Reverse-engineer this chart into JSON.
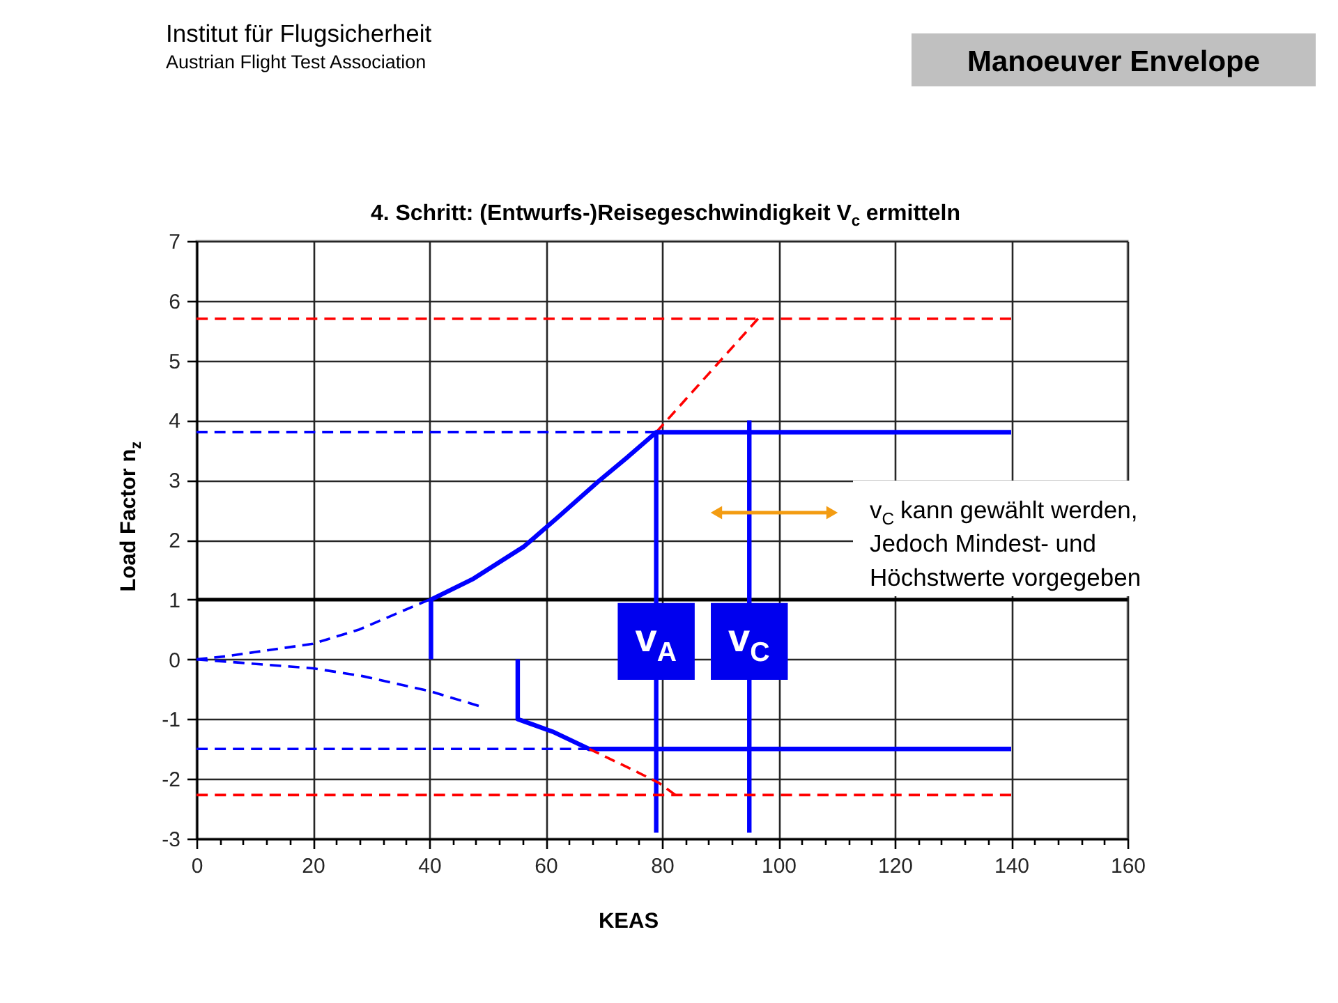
{
  "chart_data": {
    "type": "line",
    "title": "4. Schritt: (Entwurfs-)Reisegeschwindigkeit V$_{c}$ ermitteln",
    "xlabel": "KEAS",
    "ylabel": "Load Factor n$_{z}$",
    "xlim": [
      0,
      160
    ],
    "ylim": [
      -3,
      7
    ],
    "xticks": [
      0,
      {
        "value": 4,
        "label": null
      },
      {
        "value": 8,
        "label": null
      },
      {
        "value": 12,
        "label": null
      },
      {
        "value": 16,
        "label": null
      },
      20,
      {
        "value": 24,
        "label": null
      },
      {
        "value": 28,
        "label": null
      },
      {
        "value": 32,
        "label": null
      },
      {
        "value": 36,
        "label": null
      },
      40,
      {
        "value": 44,
        "label": null
      },
      {
        "value": 48,
        "label": null
      },
      {
        "value": 52,
        "label": null
      },
      {
        "value": 56,
        "label": null
      },
      60,
      {
        "value": 64,
        "label": null
      },
      {
        "value": 68,
        "label": null
      },
      {
        "value": 72,
        "label": null
      },
      {
        "value": 76,
        "label": null
      },
      80,
      {
        "value": 84,
        "label": null
      },
      {
        "value": 88,
        "label": null
      },
      {
        "value": 92,
        "label": null
      },
      {
        "value": 96,
        "label": null
      },
      100,
      {
        "value": 104,
        "label": null
      },
      {
        "value": 108,
        "label": null
      },
      {
        "value": 112,
        "label": null
      },
      {
        "value": 116,
        "label": null
      },
      120,
      {
        "value": 124,
        "label": null
      },
      {
        "value": 128,
        "label": null
      },
      {
        "value": 132,
        "label": null
      },
      {
        "value": 136,
        "label": null
      },
      140,
      {
        "value": 144,
        "label": null
      },
      {
        "value": 148,
        "label": null
      },
      {
        "value": 152,
        "label": null
      },
      {
        "value": 156,
        "label": null
      },
      160
    ],
    "yticks": [
      -3,
      -2,
      -1,
      0,
      1,
      2,
      3,
      4,
      5,
      6,
      7
    ],
    "grid": true,
    "ref_lines": [
      {
        "axis": "y",
        "value": 1,
        "color": "#000000"
      }
    ],
    "series": [
      {
        "color": "#ff0000",
        "line_style": "dashed",
        "x": [
          0,
          140
        ],
        "values": [
          5.7,
          5.7
        ]
      },
      {
        "color": "#ff0000",
        "line_style": "dashed",
        "x": [
          79,
          96.5
        ],
        "values": [
          3.8,
          5.7
        ]
      },
      {
        "color": "#0000ff",
        "line_style": "dashed",
        "x": [
          0,
          79
        ],
        "values": [
          3.8,
          3.8
        ]
      },
      {
        "color": "#0000ff",
        "line_style": "dashed",
        "x": [
          0,
          5,
          10,
          20,
          28,
          40
        ],
        "values": [
          0,
          0.05,
          0.12,
          0.26,
          0.5,
          1
        ]
      },
      {
        "color": "#0000ff",
        "line_style": "solid",
        "x": [
          40.3,
          40.3,
          47.6,
          56.3,
          61.9,
          69.1,
          73.9,
          79,
          140
        ],
        "values": [
          0,
          1,
          1.35,
          1.89,
          2.36,
          2.98,
          3.37,
          3.8,
          3.8
        ]
      },
      {
        "color": "#0000ff",
        "line_style": "solid",
        "x": [
          79,
          79
        ],
        "values": [
          3.8,
          -2.9
        ]
      },
      {
        "color": "#0000ff",
        "line_style": "solid",
        "x": [
          95,
          95
        ],
        "values": [
          4,
          -2.9
        ]
      },
      {
        "color": "#0000ff",
        "line_style": "dashed",
        "x": [
          0,
          20,
          28.5,
          40,
          48.5
        ],
        "values": [
          0,
          -0.15,
          -0.28,
          -0.53,
          -0.78
        ]
      },
      {
        "color": "#0000ff",
        "line_style": "solid",
        "x": [
          55.2,
          55.2,
          61.2,
          67.5,
          140
        ],
        "values": [
          0,
          -1,
          -1.21,
          -1.5,
          -1.5
        ]
      },
      {
        "color": "#0000ff",
        "line_style": "dashed",
        "x": [
          0,
          67.5
        ],
        "values": [
          -1.5,
          -1.5
        ]
      },
      {
        "color": "#ff0000",
        "line_style": "dashed",
        "x": [
          67.5,
          75,
          79.5,
          82.3
        ],
        "values": [
          -1.5,
          -1.85,
          -2.07,
          -2.27
        ]
      },
      {
        "color": "#ff0000",
        "line_style": "dashed",
        "x": [
          0,
          140
        ],
        "values": [
          -2.27,
          -2.27
        ]
      }
    ],
    "annotations": [
      "Institut für Flugsicherheit",
      "Austrian Flight Test Association",
      "Manoeuver Envelope",
      {
        "text": "v$_{A}$",
        "x": 79,
        "y": 0.3
      },
      {
        "text": "v$_{C}$",
        "x": 95,
        "y": 0.3
      },
      "v$_{C}$ kann gewählt werden,\nJedoch Mindest- und\nHöchstwerte vorgegeben"
    ]
  }
}
